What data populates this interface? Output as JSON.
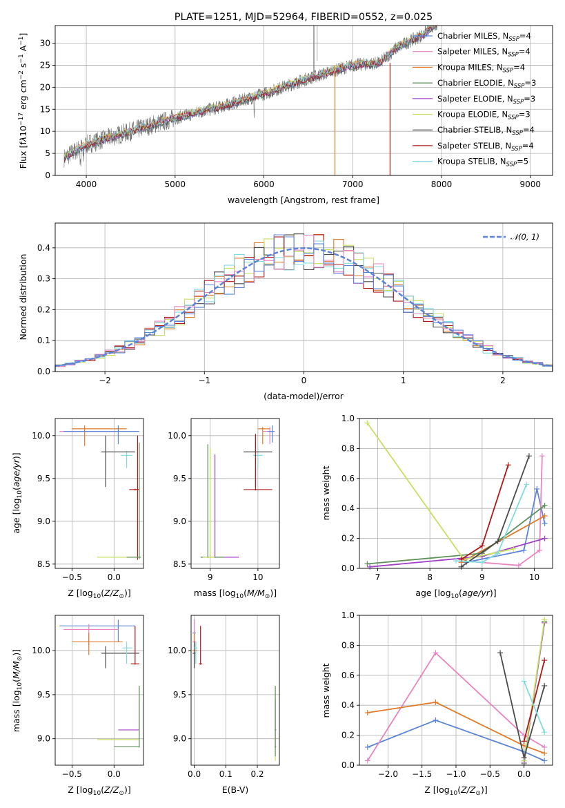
{
  "colors": {
    "chabrier_miles": "#5b84d8",
    "salpeter_miles": "#e884c0",
    "kroupa_miles": "#e07a2a",
    "chabrier_elodie": "#5f8f5a",
    "salpeter_elodie": "#a040c8",
    "kroupa_elodie": "#c6e060",
    "chabrier_stelib": "#4a4a4a",
    "salpeter_stelib": "#b01818",
    "kroupa_stelib": "#80dce0"
  },
  "chart_data": [
    {
      "type": "line",
      "title": "PLATE=1251, MJD=52964, FIBERID=0552, z=0.025",
      "xlabel": "wavelength [Angstrom, rest frame]",
      "ylabel": "Flux [f_λ10^-17 erg cm^-2 s^-1 A^-1]",
      "xlim": [
        3650,
        9250
      ],
      "ylim": [
        0,
        34
      ],
      "xticks": [
        "4000",
        "5000",
        "6000",
        "7000",
        "8000",
        "9000"
      ],
      "yticks": [
        "0",
        "5",
        "10",
        "15",
        "20",
        "25",
        "30"
      ],
      "legend": "top-right",
      "series": [
        {
          "name": "Chabrier MILES, N_SSP=4"
        },
        {
          "name": "Salpeter MILES, N_SSP=4"
        },
        {
          "name": "Kroupa MILES, N_SSP=4"
        },
        {
          "name": "Chabrier ELODIE, N_SSP=3"
        },
        {
          "name": "Salpeter ELODIE, N_SSP=3"
        },
        {
          "name": "Kroupa ELODIE, N_SSP=3"
        },
        {
          "name": "Chabrier STELIB, N_SSP=4"
        },
        {
          "name": "Salpeter STELIB, N_SSP=4"
        },
        {
          "name": "Kroupa STELIB, N_SSP=5"
        }
      ],
      "continuum_x": [
        3750,
        4000,
        4500,
        5000,
        5500,
        6000,
        6500,
        7000,
        7300,
        7500,
        7800,
        7900
      ],
      "continuum_y": [
        4,
        7,
        10,
        13,
        15.5,
        18.5,
        22,
        25,
        25.5,
        29,
        32,
        34
      ]
    },
    {
      "type": "histogram",
      "xlabel": "(data-model)/error",
      "ylabel": "Normed distribution",
      "xlim": [
        -2.5,
        2.5
      ],
      "ylim": [
        0,
        0.48
      ],
      "xticks": [
        "−2",
        "−1",
        "0",
        "1",
        "2"
      ],
      "yticks": [
        "0.0",
        "0.1",
        "0.2",
        "0.3",
        "0.4"
      ],
      "legend": "top-right",
      "legend_entries": [
        "𝒩(0, 1)"
      ],
      "bin_width": 0.1
    },
    {
      "type": "scatter",
      "xlabel": "Z [log10(Z/Z⊙)]",
      "ylabel": "age  [log10(age/yr)]",
      "xlim": [
        -0.7,
        0.35
      ],
      "ylim": [
        8.45,
        10.2
      ],
      "xticks": [
        "−0.5",
        "0.0"
      ],
      "yticks": [
        "8.5",
        "9.0",
        "9.5",
        "10.0"
      ]
    },
    {
      "type": "scatter",
      "xlabel": "mass [log10(M/M⊙)]",
      "ylabel": "",
      "xlim": [
        8.6,
        10.45
      ],
      "ylim": [
        8.45,
        10.2
      ],
      "xticks": [
        "9",
        "10"
      ],
      "yticks": [
        "8.5",
        "9.0",
        "9.5",
        "10.0"
      ]
    },
    {
      "type": "line",
      "xlabel": "age  [log10(age/yr)]",
      "ylabel": "mass weight",
      "xlim": [
        6.65,
        10.35
      ],
      "ylim": [
        0,
        1
      ],
      "xticks": [
        "7",
        "8",
        "9",
        "10"
      ],
      "yticks": [
        "0.0",
        "0.2",
        "0.4",
        "0.6",
        "0.8",
        "1.0"
      ],
      "series": [
        {
          "x": [
            8.7,
            9.8,
            10.05,
            10.2
          ],
          "y": [
            0.04,
            0.12,
            0.53,
            0.3
          ]
        },
        {
          "x": [
            8.6,
            9.7,
            10.1,
            10.15
          ],
          "y": [
            0.05,
            0.02,
            0.12,
            0.75
          ]
        },
        {
          "x": [
            8.6,
            10.2
          ],
          "y": [
            0.04,
            0.35
          ]
        },
        {
          "x": [
            6.8,
            9.0,
            10.2
          ],
          "y": [
            0.03,
            0.1,
            0.42
          ]
        },
        {
          "x": [
            6.85,
            9.0,
            10.2
          ],
          "y": [
            0.01,
            0.08,
            0.2
          ]
        },
        {
          "x": [
            6.8,
            8.65,
            9.6
          ],
          "y": [
            0.97,
            0.06,
            0.13
          ]
        },
        {
          "x": [
            8.6,
            9.3,
            9.9
          ],
          "y": [
            0.01,
            0.18,
            0.75
          ]
        },
        {
          "x": [
            8.6,
            9.0,
            9.5
          ],
          "y": [
            0.06,
            0.15,
            0.69
          ]
        },
        {
          "x": [
            8.5,
            9.0,
            9.3,
            9.85
          ],
          "y": [
            0.05,
            0.04,
            0.1,
            0.56
          ]
        }
      ]
    },
    {
      "type": "scatter",
      "xlabel": "Z [log10(Z/Z⊙)]",
      "ylabel": "mass [log10(M/M⊙)]",
      "xlim": [
        -0.7,
        0.35
      ],
      "ylim": [
        8.7,
        10.4
      ],
      "xticks": [
        "−0.5",
        "0.0"
      ],
      "yticks": [
        "9.0",
        "9.5",
        "10.0"
      ]
    },
    {
      "type": "scatter",
      "xlabel": "E(B-V)",
      "ylabel": "",
      "xlim": [
        -0.01,
        0.27
      ],
      "ylim": [
        8.7,
        10.4
      ],
      "xticks": [
        "0.0",
        "0.1",
        "0.2"
      ],
      "yticks": [
        "9.0",
        "9.5",
        "10.0"
      ]
    },
    {
      "type": "line",
      "xlabel": "Z [log10(Z/Z⊙)]",
      "ylabel": "mass weight",
      "xlim": [
        -2.42,
        0.42
      ],
      "ylim": [
        0,
        1
      ],
      "xticks": [
        "−2.0",
        "−1.5",
        "−1.0",
        "−0.5",
        "0.0"
      ],
      "yticks": [
        "0.0",
        "0.2",
        "0.4",
        "0.6",
        "0.8",
        "1.0"
      ],
      "series": [
        {
          "x": [
            -2.3,
            -1.3,
            0.0,
            0.3
          ],
          "y": [
            0.12,
            0.3,
            0.09,
            0.03
          ]
        },
        {
          "x": [
            -2.3,
            -1.3,
            0.0,
            0.3
          ],
          "y": [
            0.03,
            0.75,
            0.2,
            0.12
          ]
        },
        {
          "x": [
            -2.3,
            -1.3,
            0.0,
            0.3
          ],
          "y": [
            0.35,
            0.42,
            0.13,
            0.08
          ]
        },
        {
          "x": [
            0.0,
            0.3
          ],
          "y": [
            0.01,
            0.96
          ]
        },
        {
          "x": [
            0.0,
            0.3
          ],
          "y": [
            0.02,
            0.95
          ]
        },
        {
          "x": [
            0.0,
            0.3
          ],
          "y": [
            0.03,
            0.97
          ]
        },
        {
          "x": [
            -0.35,
            0.0,
            0.3
          ],
          "y": [
            0.75,
            0.05,
            0.53
          ]
        },
        {
          "x": [
            0.0,
            0.3
          ],
          "y": [
            0.16,
            0.7
          ]
        },
        {
          "x": [
            0.0,
            0.3
          ],
          "y": [
            0.56,
            0.22
          ]
        }
      ]
    }
  ]
}
